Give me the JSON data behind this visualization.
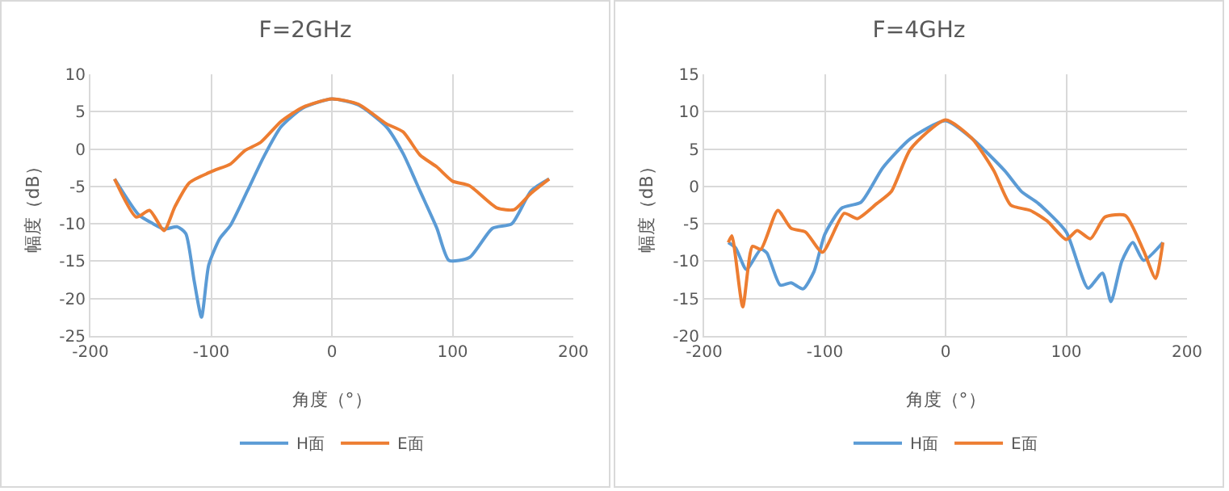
{
  "chart_data": [
    {
      "type": "line",
      "title": "F=2GHz",
      "xlabel": "角度（°）",
      "ylabel": "幅度（dB）",
      "xlim": [
        -200,
        200
      ],
      "xticks": [
        -200,
        -100,
        0,
        100,
        200
      ],
      "ylim": [
        -25,
        10
      ],
      "yticks": [
        -25,
        -20,
        -15,
        -10,
        -5,
        0,
        5,
        10
      ],
      "grid": true,
      "legend": "bottom",
      "marker": "none",
      "line_style": "solid",
      "series": [
        {
          "name": "H面",
          "color": "#5b9bd5",
          "x": [
            -180,
            -160,
            -148,
            -139,
            -128,
            -121,
            -114,
            -108,
            -102,
            -93,
            -84,
            -70,
            -56,
            -42,
            -24,
            0,
            22,
            45,
            59,
            73,
            87,
            97,
            114,
            133,
            149,
            165,
            180
          ],
          "values": [
            -4,
            -8.8,
            -10,
            -10.7,
            -10.4,
            -11.3,
            -17.7,
            -22.5,
            -15.5,
            -12,
            -10.2,
            -5.6,
            -0.9,
            3,
            5.5,
            6.7,
            5.9,
            3,
            -0.6,
            -5.6,
            -10.6,
            -14.9,
            -14.5,
            -10.6,
            -10,
            -5.6,
            -4
          ]
        },
        {
          "name": "E面",
          "color": "#ed7d31",
          "x": [
            -180,
            -162,
            -151,
            -139,
            -130,
            -118,
            -98,
            -84,
            -72,
            -59,
            -42,
            -24,
            0,
            22,
            45,
            59,
            73,
            87,
            100,
            114,
            137,
            151,
            165,
            180
          ],
          "values": [
            -4,
            -9.1,
            -8.2,
            -10.9,
            -7.7,
            -4.5,
            -2.9,
            -2,
            -0.2,
            0.9,
            3.7,
            5.6,
            6.7,
            6,
            3.4,
            2.3,
            -0.8,
            -2.4,
            -4.3,
            -4.9,
            -7.9,
            -8.1,
            -5.9,
            -4
          ]
        }
      ]
    },
    {
      "type": "line",
      "title": "F=4GHz",
      "xlabel": "角度（°）",
      "ylabel": "幅度（dB）",
      "xlim": [
        -200,
        200
      ],
      "xticks": [
        -200,
        -100,
        0,
        100,
        200
      ],
      "ylim": [
        -20,
        15
      ],
      "yticks": [
        -20,
        -15,
        -10,
        -5,
        0,
        5,
        10,
        15
      ],
      "grid": true,
      "legend": "bottom",
      "marker": "none",
      "line_style": "solid",
      "series": [
        {
          "name": "H面",
          "color": "#5b9bd5",
          "x": [
            -180,
            -174,
            -165,
            -153,
            -148,
            -137,
            -128,
            -118,
            -109,
            -100,
            -86,
            -70,
            -52,
            -29,
            0,
            22,
            49,
            63,
            77,
            100,
            118,
            130,
            137,
            146,
            155,
            164,
            180
          ],
          "values": [
            -7.5,
            -8.2,
            -11.1,
            -8.4,
            -8.9,
            -13.2,
            -12.9,
            -13.7,
            -11.4,
            -6.4,
            -2.9,
            -2.1,
            2.5,
            6.4,
            8.8,
            6.4,
            2.1,
            -0.7,
            -2.3,
            -6.1,
            -13.6,
            -11.6,
            -15.4,
            -10,
            -7.5,
            -9.9,
            -7.5
          ]
        },
        {
          "name": "E面",
          "color": "#ed7d31",
          "x": [
            -180,
            -177,
            -168,
            -160,
            -153,
            -139,
            -128,
            -116,
            -102,
            -84,
            -73,
            -57,
            -45,
            -29,
            0,
            22,
            40,
            54,
            70,
            84,
            100,
            109,
            120,
            132,
            149,
            164,
            174,
            180
          ],
          "values": [
            -7.5,
            -6.6,
            -16.1,
            -8,
            -8.4,
            -3.2,
            -5.6,
            -6.1,
            -8.8,
            -3.6,
            -4.3,
            -2.3,
            -0.7,
            5,
            8.9,
            6.4,
            2.1,
            -2.5,
            -3.2,
            -4.6,
            -7.1,
            -5.9,
            -7,
            -4.1,
            -3.9,
            -8.6,
            -12.3,
            -7.5
          ]
        }
      ]
    }
  ]
}
